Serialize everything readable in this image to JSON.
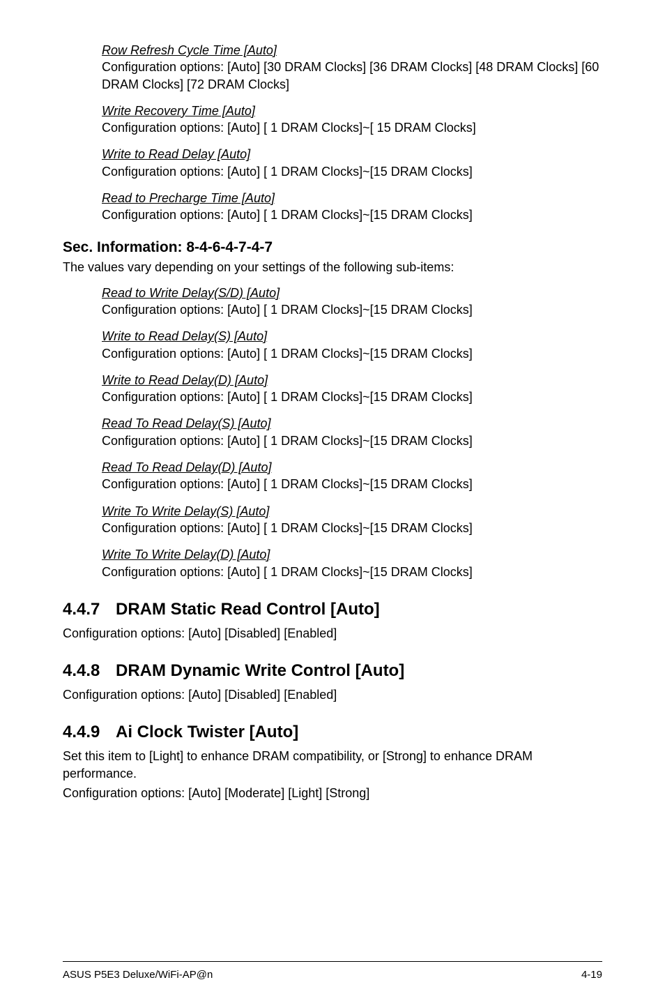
{
  "block1": [
    {
      "title": "Row Refresh Cycle Time [Auto]",
      "config": "Configuration options: [Auto] [30 DRAM Clocks] [36 DRAM Clocks] [48 DRAM Clocks] [60 DRAM Clocks] [72 DRAM Clocks]"
    },
    {
      "title": "Write Recovery Time [Auto]",
      "config": "Configuration options: [Auto] [ 1 DRAM Clocks]~[ 15 DRAM Clocks]"
    },
    {
      "title": "Write to Read Delay [Auto]",
      "config": "Configuration options: [Auto] [ 1 DRAM Clocks]~[15 DRAM Clocks]"
    },
    {
      "title": "Read to Precharge Time [Auto]",
      "config": "Configuration options: [Auto] [ 1 DRAM Clocks]~[15 DRAM Clocks]"
    }
  ],
  "sec_info": {
    "heading": "Sec. Information: 8-4-6-4-7-4-7",
    "sub": "The values vary depending on your settings of the following sub-items:"
  },
  "block2": [
    {
      "title": "Read to Write Delay(S/D) [Auto]",
      "config": "Configuration options: [Auto] [ 1 DRAM Clocks]~[15 DRAM Clocks]"
    },
    {
      "title": "Write to Read Delay(S) [Auto]",
      "config": "Configuration options: [Auto] [ 1 DRAM Clocks]~[15 DRAM Clocks]"
    },
    {
      "title": "Write to Read Delay(D) [Auto]",
      "config": "Configuration options: [Auto] [ 1 DRAM Clocks]~[15 DRAM Clocks]"
    },
    {
      "title": "Read To Read Delay(S) [Auto]",
      "config": "Configuration options: [Auto] [ 1 DRAM Clocks]~[15 DRAM Clocks]"
    },
    {
      "title": "Read To Read Delay(D) [Auto]",
      "config": "Configuration options: [Auto] [ 1 DRAM Clocks]~[15 DRAM Clocks]"
    },
    {
      "title": "Write To Write Delay(S) [Auto]",
      "config": "Configuration options: [Auto] [ 1 DRAM Clocks]~[15 DRAM Clocks]"
    },
    {
      "title": "Write To Write Delay(D) [Auto]",
      "config": "Configuration options: [Auto] [ 1 DRAM Clocks]~[15 DRAM Clocks]"
    }
  ],
  "sections": [
    {
      "num": "4.4.7",
      "title": "DRAM Static Read Control [Auto]",
      "body": [
        "Configuration options: [Auto] [Disabled] [Enabled]"
      ]
    },
    {
      "num": "4.4.8",
      "title": "DRAM Dynamic Write Control [Auto]",
      "body": [
        "Configuration options: [Auto] [Disabled] [Enabled]"
      ]
    },
    {
      "num": "4.4.9",
      "title": "Ai Clock Twister [Auto]",
      "body": [
        "Set this item to [Light] to enhance DRAM compatibility, or [Strong] to enhance DRAM performance.",
        "Configuration options: [Auto] [Moderate] [Light] [Strong]"
      ]
    }
  ],
  "footer": {
    "left": "ASUS P5E3 Deluxe/WiFi-AP@n",
    "right": "4-19"
  }
}
